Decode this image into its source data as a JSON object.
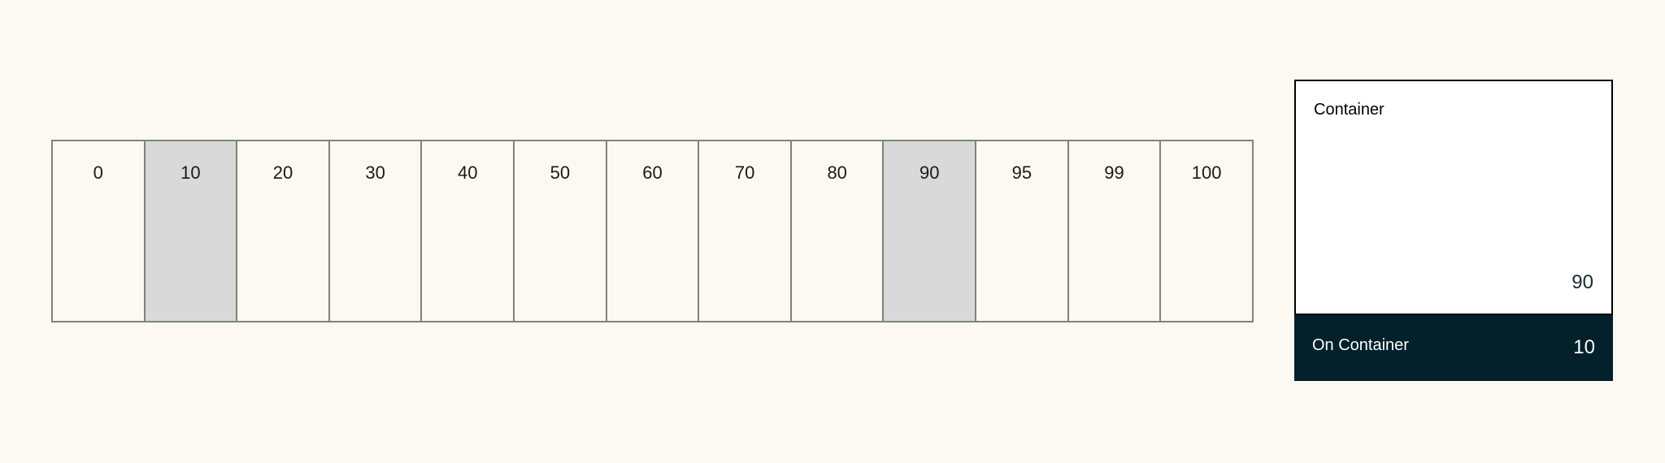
{
  "scale": {
    "steps": [
      "0",
      "10",
      "20",
      "30",
      "40",
      "50",
      "60",
      "70",
      "80",
      "90",
      "95",
      "99",
      "100"
    ],
    "highlighted": [
      "10",
      "90"
    ],
    "colors": {
      "border": "#7b857a",
      "highlight": "#d9d9d9",
      "background": "#fcf9f2"
    }
  },
  "card": {
    "container_label": "Container",
    "container_value": "90",
    "on_container_label": "On Container",
    "on_container_value": "10",
    "colors": {
      "container": "#ffffff",
      "on_container": "#02212a"
    }
  }
}
